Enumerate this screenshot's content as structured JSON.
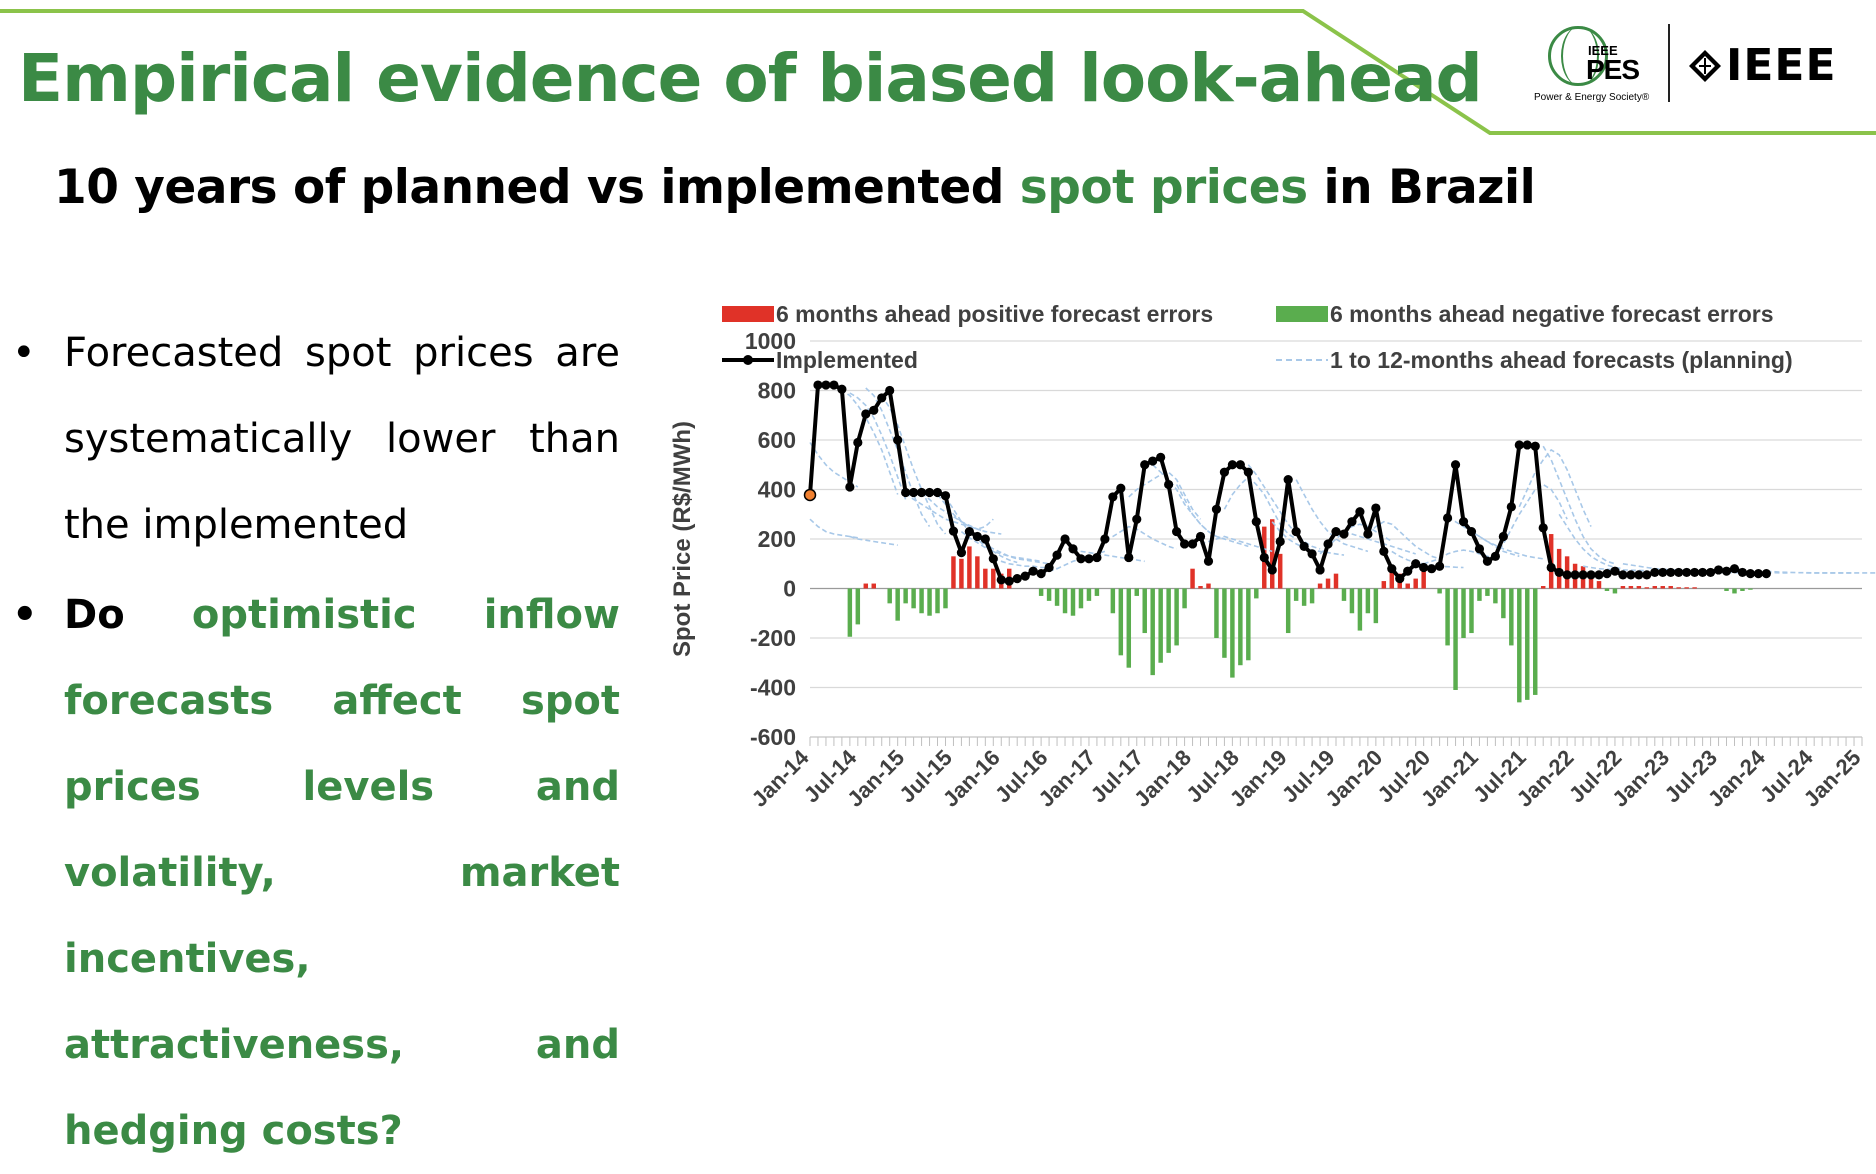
{
  "slide": {
    "title": "Empirical evidence of biased look-ahead",
    "subtitle_pre": "10 years of planned vs implemented",
    "subtitle_highlight": "spot prices",
    "subtitle_post": "in Brazil",
    "accent_color": "#3b8a45",
    "line_color": "#8bc34a"
  },
  "logos": {
    "pes_small": "IEEE",
    "pes_big": "PES",
    "pes_society": "Power & Energy Society®",
    "ieee_text": "IEEE"
  },
  "bullets": {
    "b1": "Forecasted spot prices are systematically lower than the implemented",
    "b2_lead": "Do",
    "b2_rest": "optimistic inflow forecasts affect spot prices levels and volatility, market incentives, attractiveness, and hedging costs?"
  },
  "chart_data": {
    "type": "line",
    "ylabel": "Spot Price (R$/MWh)",
    "xlabel": "",
    "ylim": [
      -600,
      1000
    ],
    "yticks": [
      1000,
      800,
      600,
      400,
      200,
      0,
      -200,
      -400,
      -600
    ],
    "xlim": [
      "2014-01",
      "2025-01"
    ],
    "xtick_labels": [
      "Jan-14",
      "Jul-14",
      "Jan-15",
      "Jul-15",
      "Jan-16",
      "Jul-16",
      "Jan-17",
      "Jul-17",
      "Jan-18",
      "Jul-18",
      "Jan-19",
      "Jul-19",
      "Jan-20",
      "Jul-20",
      "Jan-21",
      "Jul-21",
      "Jan-22",
      "Jul-22",
      "Jan-23",
      "Jul-23",
      "Jan-24",
      "Jul-24",
      "Jan-25"
    ],
    "grid": true,
    "legend_position": "top",
    "colors": {
      "positive": "#e03228",
      "negative": "#5aad4e",
      "implemented": "#000000",
      "forecast": "#a8c8e8",
      "first_point": "#f08030"
    },
    "legend": [
      {
        "key": "positive",
        "label": "6 months ahead positive forecast errors"
      },
      {
        "key": "negative",
        "label": "6 months ahead negative forecast errors"
      },
      {
        "key": "implemented",
        "label": "Implemented"
      },
      {
        "key": "forecast",
        "label": "1 to 12-months ahead forecasts (planning)"
      }
    ],
    "implemented": {
      "start": "2014-01",
      "values": [
        378,
        822,
        822,
        822,
        805,
        410,
        590,
        705,
        720,
        770,
        800,
        600,
        388,
        388,
        388,
        388,
        388,
        375,
        232,
        145,
        230,
        210,
        200,
        120,
        35,
        30,
        40,
        50,
        70,
        60,
        85,
        135,
        200,
        160,
        120,
        120,
        125,
        200,
        370,
        405,
        125,
        280,
        500,
        515,
        530,
        420,
        230,
        180,
        180,
        210,
        110,
        320,
        470,
        500,
        500,
        470,
        270,
        125,
        75,
        190,
        440,
        230,
        170,
        140,
        75,
        180,
        230,
        220,
        270,
        310,
        220,
        325,
        150,
        80,
        40,
        70,
        100,
        85,
        80,
        90,
        285,
        500,
        270,
        230,
        160,
        110,
        130,
        210,
        330,
        580,
        580,
        575,
        245,
        85,
        65,
        55,
        55,
        55,
        55,
        55,
        60,
        70,
        55,
        55,
        55,
        55,
        65,
        65,
        65,
        65,
        65,
        65,
        65,
        65,
        75,
        70,
        80,
        65,
        60,
        60,
        60
      ]
    },
    "errors": {
      "start": "2014-01",
      "values": [
        0,
        0,
        0,
        0,
        0,
        -195,
        -145,
        20,
        20,
        0,
        -60,
        -130,
        -60,
        -80,
        -100,
        -110,
        -100,
        -80,
        130,
        120,
        170,
        130,
        80,
        80,
        60,
        80,
        0,
        0,
        0,
        -30,
        -50,
        -70,
        -100,
        -110,
        -80,
        -50,
        -30,
        0,
        -100,
        -270,
        -320,
        -30,
        -180,
        -350,
        -300,
        -260,
        -230,
        -80,
        80,
        10,
        20,
        -200,
        -280,
        -360,
        -310,
        -290,
        -40,
        250,
        280,
        140,
        -180,
        -50,
        -70,
        -60,
        20,
        40,
        60,
        -50,
        -100,
        -170,
        -100,
        -140,
        30,
        80,
        60,
        20,
        40,
        80,
        0,
        -20,
        -230,
        -410,
        -200,
        -180,
        -50,
        -30,
        -60,
        -120,
        -230,
        -460,
        -450,
        -430,
        10,
        220,
        160,
        130,
        100,
        90,
        40,
        30,
        -10,
        -20,
        10,
        10,
        10,
        5,
        10,
        10,
        10,
        5,
        5,
        5,
        0,
        0,
        0,
        -10,
        -20,
        -10,
        -5,
        0,
        0
      ]
    },
    "forecasts": [
      {
        "start": "2014-01",
        "values": [
          590,
          540,
          500,
          470,
          450,
          430,
          410
        ]
      },
      {
        "start": "2014-01",
        "values": [
          280,
          250,
          230,
          220,
          215,
          210,
          205
        ]
      },
      {
        "start": "2014-06",
        "values": [
          210,
          200,
          195,
          190,
          185,
          180,
          175
        ]
      },
      {
        "start": "2014-04",
        "values": [
          820,
          800,
          780,
          740,
          690,
          630,
          560,
          470,
          380
        ]
      },
      {
        "start": "2014-06",
        "values": [
          790,
          770,
          740,
          690,
          620,
          540,
          450,
          360
        ]
      },
      {
        "start": "2014-08",
        "values": [
          810,
          780,
          720,
          640,
          560,
          470,
          380,
          300,
          250
        ]
      },
      {
        "start": "2014-10",
        "values": [
          780,
          730,
          660,
          570,
          480,
          400,
          330,
          260,
          220
        ]
      },
      {
        "start": "2015-01",
        "values": [
          385,
          360,
          340,
          320,
          300,
          280,
          270,
          260,
          250,
          240,
          230
        ]
      },
      {
        "start": "2015-03",
        "values": [
          385,
          360,
          330,
          310,
          290,
          270,
          255,
          240,
          230,
          225,
          220
        ]
      },
      {
        "start": "2015-05",
        "values": [
          380,
          340,
          300,
          270,
          250,
          240,
          250,
          280
        ]
      },
      {
        "start": "2015-06",
        "values": [
          370,
          320,
          270,
          230,
          200,
          170,
          150,
          130,
          115,
          105
        ]
      },
      {
        "start": "2015-08",
        "values": [
          230,
          205,
          185,
          165,
          150,
          140,
          130,
          125,
          120,
          115,
          110
        ]
      },
      {
        "start": "2015-10",
        "values": [
          210,
          180,
          160,
          145,
          130,
          120,
          115,
          110,
          105,
          100
        ]
      },
      {
        "start": "2015-12",
        "values": [
          120,
          110,
          100,
          95,
          90,
          90,
          85,
          85,
          80
        ]
      },
      {
        "start": "2016-06",
        "values": [
          60,
          70,
          80,
          95,
          110,
          120,
          130,
          140,
          150
        ]
      },
      {
        "start": "2016-10",
        "values": [
          160,
          150,
          145,
          140,
          135,
          130,
          125,
          120,
          115,
          110
        ]
      },
      {
        "start": "2017-02",
        "values": [
          200,
          210,
          230,
          250,
          240,
          220,
          200,
          185,
          170,
          160
        ]
      },
      {
        "start": "2017-05",
        "values": [
          370,
          400,
          420,
          440,
          460,
          470,
          440,
          380,
          320,
          280
        ]
      },
      {
        "start": "2017-08",
        "values": [
          500,
          470,
          440,
          400,
          340,
          300,
          260,
          230,
          210,
          200
        ]
      },
      {
        "start": "2017-11",
        "values": [
          420,
          360,
          300,
          260,
          230,
          210,
          200,
          190,
          180,
          170
        ]
      },
      {
        "start": "2018-02",
        "values": [
          180,
          190,
          200,
          210,
          200,
          190,
          180,
          170,
          160,
          150
        ]
      },
      {
        "start": "2018-05",
        "values": [
          320,
          380,
          420,
          450,
          420,
          380,
          320,
          260,
          220,
          200
        ]
      },
      {
        "start": "2018-08",
        "values": [
          500,
          460,
          410,
          360,
          310,
          260,
          220,
          190,
          170,
          160
        ]
      },
      {
        "start": "2018-11",
        "values": [
          270,
          230,
          200,
          180,
          165,
          155,
          150,
          145,
          140,
          135
        ]
      },
      {
        "start": "2019-02",
        "values": [
          440,
          380,
          320,
          270,
          230,
          200,
          180,
          170,
          160,
          150
        ]
      },
      {
        "start": "2019-05",
        "values": [
          140,
          170,
          200,
          230,
          250,
          260,
          250,
          230,
          210,
          190
        ]
      },
      {
        "start": "2019-08",
        "values": [
          230,
          220,
          210,
          200,
          190,
          180,
          170,
          160,
          150,
          140
        ]
      },
      {
        "start": "2019-11",
        "values": [
          220,
          250,
          270,
          260,
          230,
          200,
          170,
          150,
          130,
          120
        ]
      },
      {
        "start": "2020-02",
        "values": [
          150,
          130,
          115,
          105,
          100,
          95,
          90,
          88,
          86,
          85
        ]
      },
      {
        "start": "2020-06",
        "values": [
          100,
          110,
          120,
          140,
          150,
          155,
          150,
          140,
          130,
          120
        ]
      },
      {
        "start": "2020-09",
        "values": [
          285,
          270,
          250,
          230,
          210,
          190,
          170,
          150,
          140,
          130
        ]
      },
      {
        "start": "2020-12",
        "values": [
          230,
          210,
          190,
          175,
          160,
          150,
          140,
          130,
          125,
          120
        ]
      },
      {
        "start": "2021-03",
        "values": [
          130,
          180,
          240,
          300,
          350,
          400,
          420,
          400,
          350,
          280
        ]
      },
      {
        "start": "2021-06",
        "values": [
          330,
          400,
          470,
          520,
          560,
          540,
          480,
          400,
          320,
          250
        ]
      },
      {
        "start": "2021-09",
        "values": [
          575,
          520,
          440,
          360,
          280,
          210,
          160,
          130,
          110,
          100
        ]
      },
      {
        "start": "2021-11",
        "values": [
          300,
          250,
          200,
          160,
          130,
          110,
          95,
          85,
          80
        ]
      },
      {
        "start": "2022-02",
        "values": [
          90,
          85,
          80,
          78,
          76,
          75,
          74,
          73,
          72
        ]
      },
      {
        "start": "2022-07",
        "values": [
          100,
          95,
          90,
          85,
          80,
          78,
          76,
          74,
          72,
          70
        ]
      },
      {
        "start": "2023-01",
        "values": [
          70,
          68,
          67,
          66,
          66,
          65,
          65,
          65,
          64,
          64
        ]
      },
      {
        "start": "2023-07",
        "values": [
          66,
          66,
          65,
          65,
          65,
          64,
          64,
          64,
          63,
          63
        ]
      },
      {
        "start": "2024-01",
        "values": [
          70,
          68,
          66,
          65,
          64,
          64,
          63,
          63,
          63,
          63,
          63,
          63
        ]
      },
      {
        "start": "2024-06",
        "values": [
          63,
          63,
          63,
          63,
          63,
          63,
          63,
          63,
          63,
          63,
          63,
          63
        ]
      }
    ]
  }
}
